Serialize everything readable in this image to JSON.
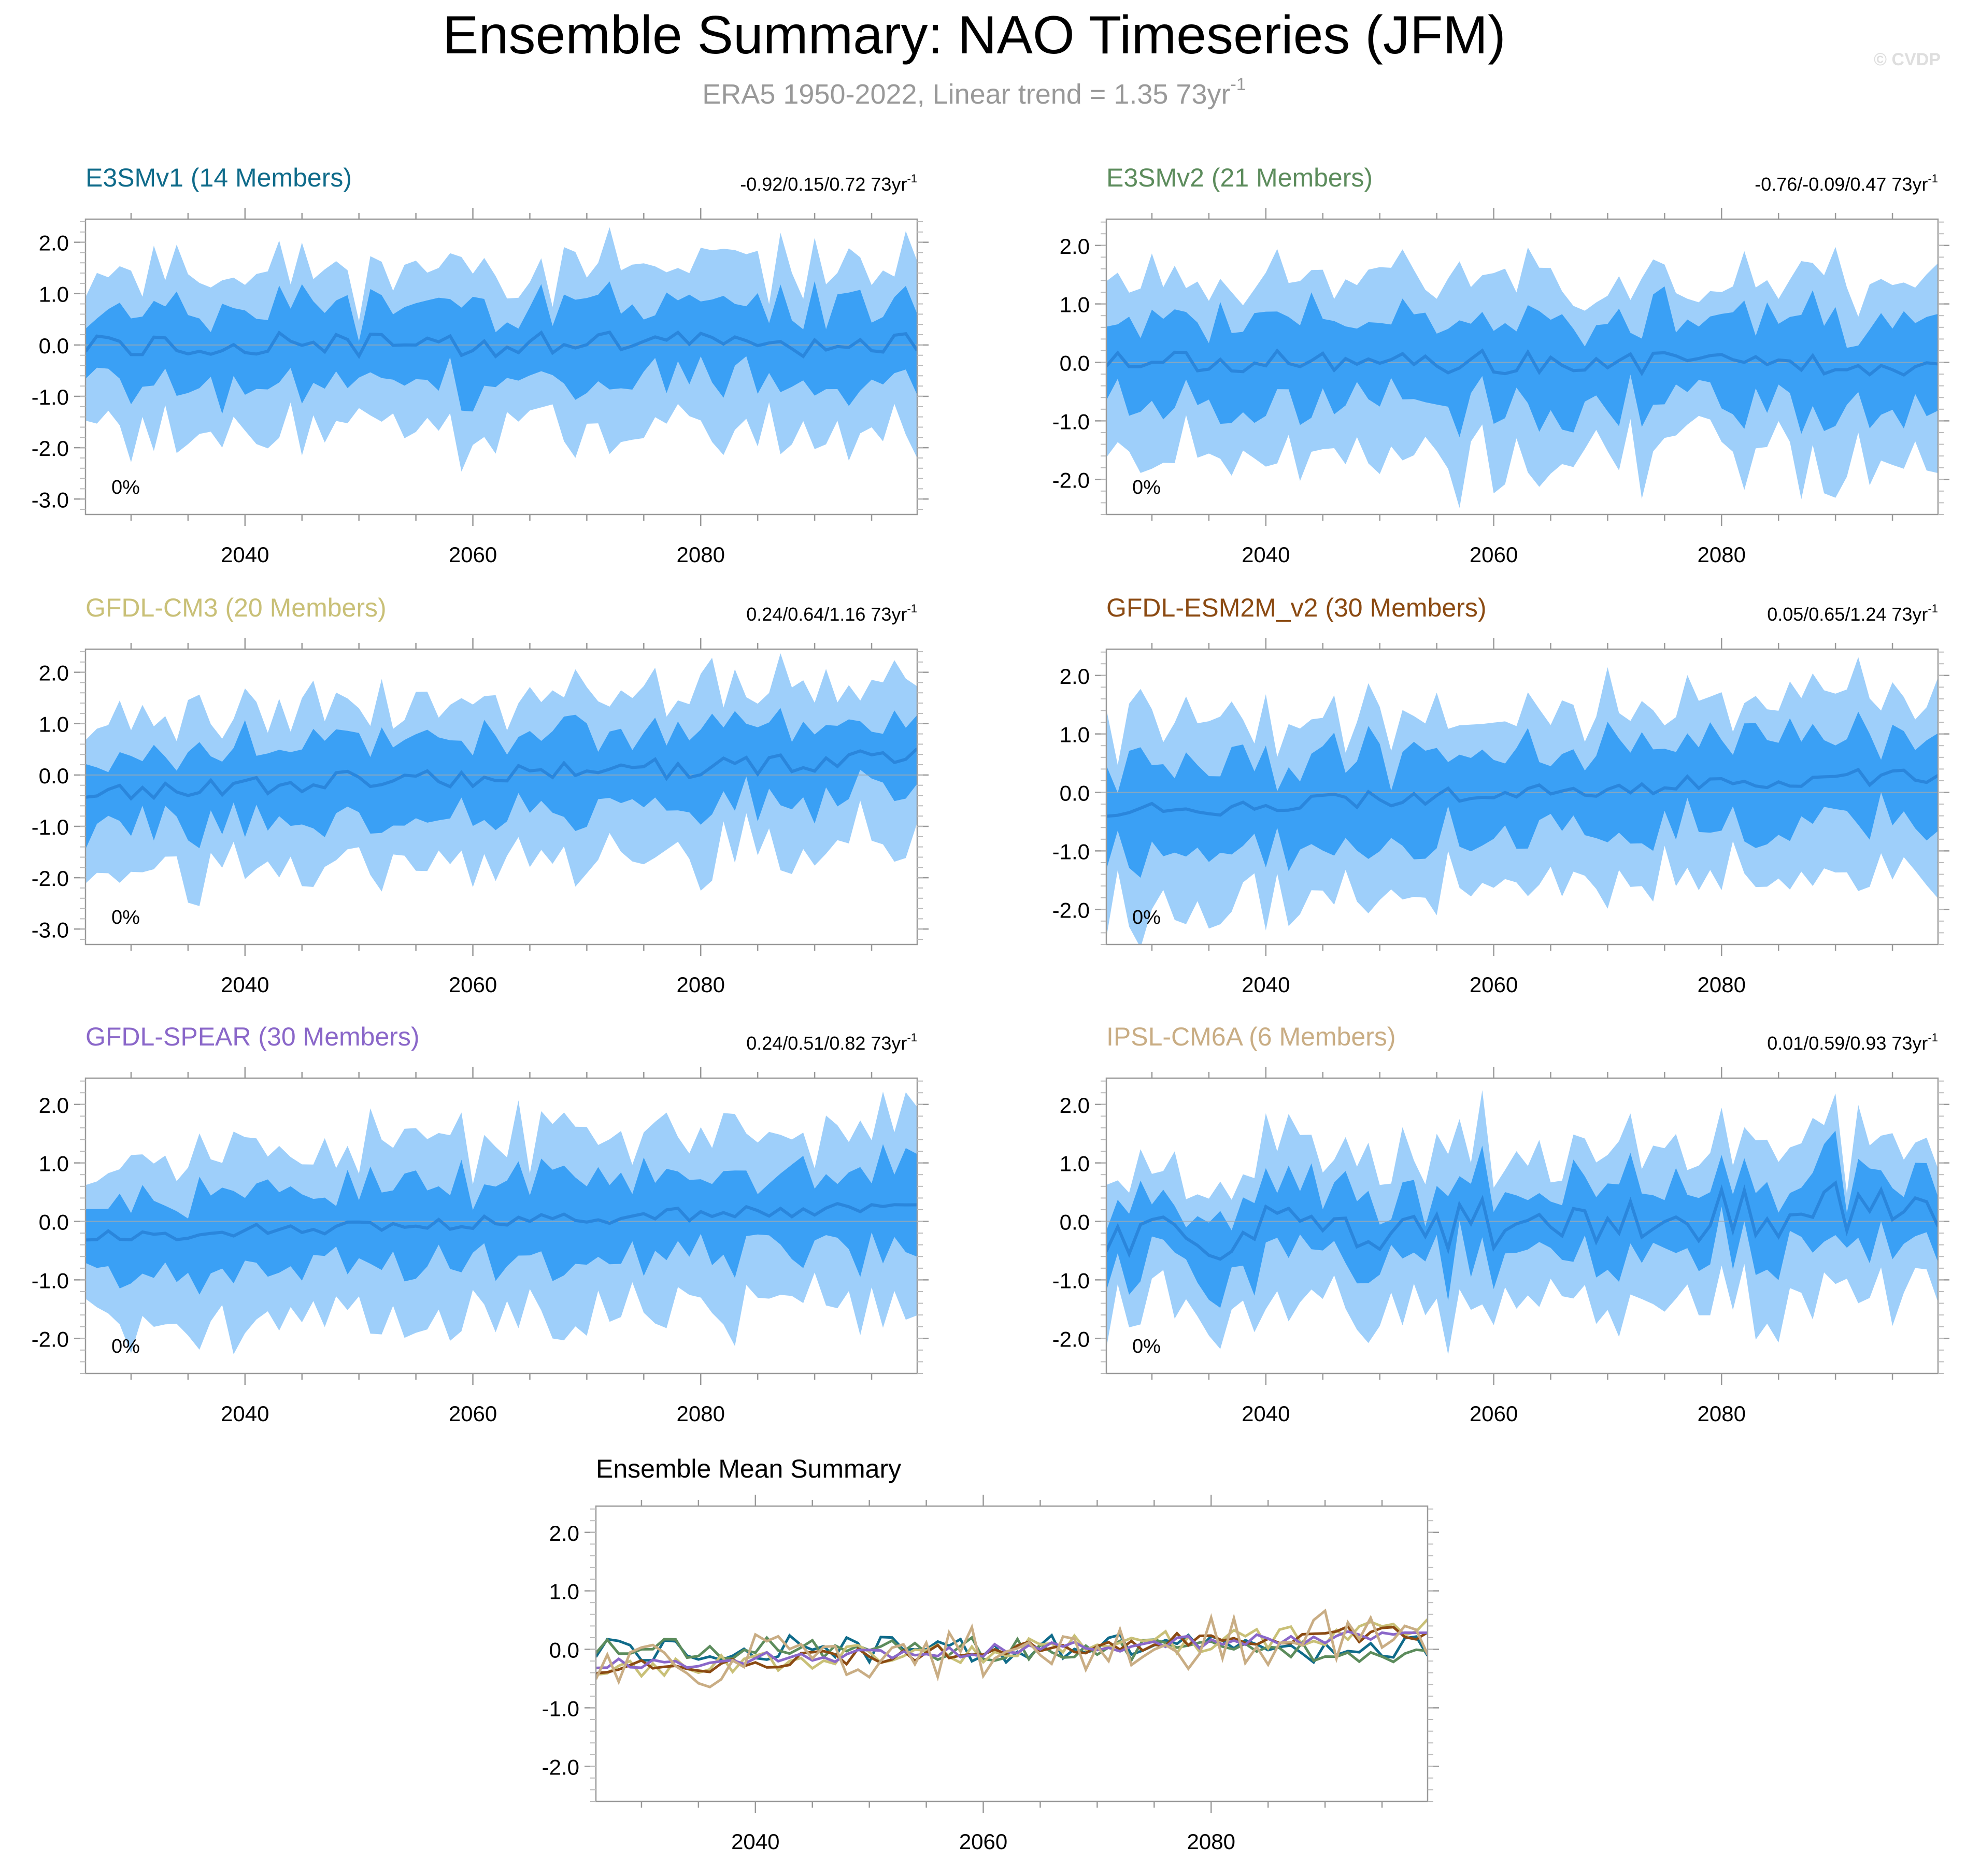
{
  "header": {
    "title": "Ensemble Summary: NAO Timeseries (JFM)",
    "subtitle": "ERA5 1950-2022, Linear trend = 1.35 73yr",
    "subtitle_exp": "-1",
    "copyright": "© CVDP"
  },
  "colors": {
    "outer_band": "#9ecffa",
    "inner_band": "#3aa0f5",
    "mean_line": "#2a86dc",
    "frame": "#999999",
    "zero_line": "#aaaaaa"
  },
  "chart_data": [
    {
      "id": "e3smv1",
      "type": "area",
      "title": "E3SMv1 (14 Members)",
      "title_color": "#0f6b8a",
      "trend": "-0.92/0.15/0.72 73yr",
      "trend_exp": "-1",
      "pct": "0%",
      "xlim": [
        2026,
        2099
      ],
      "ylim": [
        -3.3,
        2.45
      ],
      "yticks": [
        2.0,
        1.0,
        0.0,
        -1.0,
        -2.0,
        -3.0
      ],
      "ytick_labels": [
        "2.0",
        "1.0",
        "0.0",
        "-1.0",
        "-2.0",
        "-3.0"
      ],
      "xticks": [
        2040,
        2060,
        2080
      ],
      "x_start": 2026,
      "amp": 1.0,
      "trend_slope": 0.0,
      "mean_amp": 0.25,
      "seed": 11
    },
    {
      "id": "e3smv2",
      "type": "area",
      "title": "E3SMv2 (21 Members)",
      "title_color": "#5c8c5c",
      "trend": "-0.76/-0.09/0.47 73yr",
      "trend_exp": "-1",
      "pct": "0%",
      "xlim": [
        2026,
        2099
      ],
      "ylim": [
        -2.6,
        2.45
      ],
      "yticks": [
        2.0,
        1.0,
        0.0,
        -1.0,
        -2.0
      ],
      "ytick_labels": [
        "2.0",
        "1.0",
        "0.0",
        "-1.0",
        "-2.0"
      ],
      "xticks": [
        2040,
        2060,
        2080
      ],
      "x_start": 2026,
      "amp": 1.0,
      "trend_slope": -0.001,
      "mean_amp": 0.2,
      "seed": 23
    },
    {
      "id": "gfdl-cm3",
      "type": "area",
      "title": "GFDL-CM3 (20 Members)",
      "title_color": "#c9c077",
      "trend": "0.24/0.64/1.16 73yr",
      "trend_exp": "-1",
      "pct": "0%",
      "xlim": [
        2026,
        2099
      ],
      "ylim": [
        -3.3,
        2.45
      ],
      "yticks": [
        2.0,
        1.0,
        0.0,
        -1.0,
        -2.0,
        -3.0
      ],
      "ytick_labels": [
        "2.0",
        "1.0",
        "0.0",
        "-1.0",
        "-2.0",
        "-3.0"
      ],
      "xticks": [
        2040,
        2060,
        2080
      ],
      "x_start": 2026,
      "amp": 1.0,
      "trend_slope": 0.009,
      "mean_amp": 0.2,
      "seed": 37
    },
    {
      "id": "gfdl-esm2m",
      "type": "area",
      "title": "GFDL-ESM2M_v2 (30 Members)",
      "title_color": "#8b4a12",
      "trend": "0.05/0.65/1.24 73yr",
      "trend_exp": "-1",
      "pct": "0%",
      "xlim": [
        2026,
        2099
      ],
      "ylim": [
        -2.6,
        2.45
      ],
      "yticks": [
        2.0,
        1.0,
        0.0,
        -1.0,
        -2.0
      ],
      "ytick_labels": [
        "2.0",
        "1.0",
        "0.0",
        "-1.0",
        "-2.0"
      ],
      "xticks": [
        2040,
        2060,
        2080
      ],
      "x_start": 2026,
      "amp": 0.95,
      "trend_slope": 0.009,
      "mean_amp": 0.15,
      "seed": 41
    },
    {
      "id": "gfdl-spear",
      "type": "area",
      "title": "GFDL-SPEAR (30 Members)",
      "title_color": "#8a67c9",
      "trend": "0.24/0.51/0.82 73yr",
      "trend_exp": "-1",
      "pct": "0%",
      "xlim": [
        2026,
        2099
      ],
      "ylim": [
        -2.6,
        2.45
      ],
      "yticks": [
        2.0,
        1.0,
        0.0,
        -1.0,
        -2.0
      ],
      "ytick_labels": [
        "2.0",
        "1.0",
        "0.0",
        "-1.0",
        "-2.0"
      ],
      "xticks": [
        2040,
        2060,
        2080
      ],
      "x_start": 2026,
      "amp": 0.95,
      "trend_slope": 0.007,
      "mean_amp": 0.12,
      "seed": 53
    },
    {
      "id": "ipsl-cm6a",
      "type": "area",
      "title": "IPSL-CM6A (6 Members)",
      "title_color": "#c9ad84",
      "trend": "0.01/0.59/0.93 73yr",
      "trend_exp": "-1",
      "pct": "0%",
      "xlim": [
        2026,
        2099
      ],
      "ylim": [
        -2.6,
        2.45
      ],
      "yticks": [
        2.0,
        1.0,
        0.0,
        -1.0,
        -2.0
      ],
      "ytick_labels": [
        "2.0",
        "1.0",
        "0.0",
        "-1.0",
        "-2.0"
      ],
      "xticks": [
        2040,
        2060,
        2080
      ],
      "x_start": 2026,
      "amp": 0.9,
      "trend_slope": 0.008,
      "mean_amp": 0.45,
      "seed": 67,
      "narrow_inner": true
    },
    {
      "id": "ensemble-mean",
      "type": "line",
      "title": "Ensemble Mean Summary",
      "xlim": [
        2026,
        2099
      ],
      "ylim": [
        -2.6,
        2.45
      ],
      "yticks": [
        2.0,
        1.0,
        0.0,
        -1.0,
        -2.0
      ],
      "ytick_labels": [
        "2.0",
        "1.0",
        "0.0",
        "-1.0",
        "-2.0"
      ],
      "xticks": [
        2040,
        2060,
        2080
      ],
      "series": [
        {
          "name": "E3SMv1",
          "color": "#0f6b8a"
        },
        {
          "name": "E3SMv2",
          "color": "#5c8c5c"
        },
        {
          "name": "GFDL-CM3",
          "color": "#c9c077"
        },
        {
          "name": "GFDL-ESM2M_v2",
          "color": "#8b4a12"
        },
        {
          "name": "GFDL-SPEAR",
          "color": "#8a67c9"
        },
        {
          "name": "IPSL-CM6A",
          "color": "#c9ad84"
        }
      ]
    }
  ]
}
